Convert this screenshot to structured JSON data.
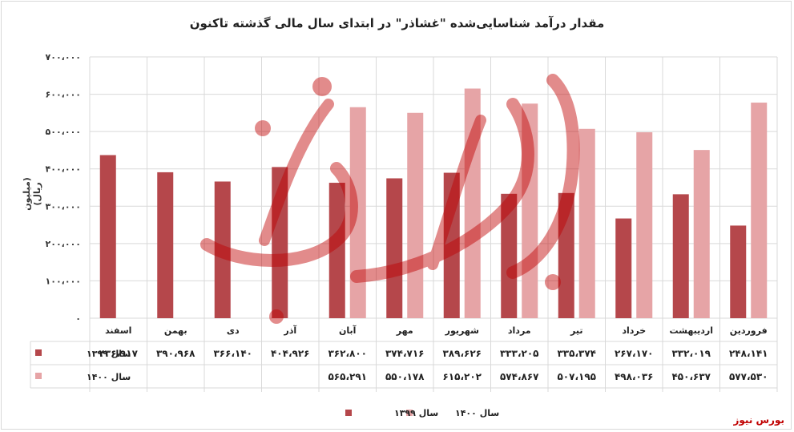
{
  "chart_data": {
    "type": "bar",
    "title": "مقدار درآمد شناسایی‌شده \"غشاذر\" در ابتدای سال مالی گذشته تاکنون",
    "ylabel": "(میلیون ریال)",
    "ylim": [
      0,
      700000
    ],
    "yticks": [
      "۰",
      "۱۰۰،۰۰۰",
      "۲۰۰،۰۰۰",
      "۳۰۰،۰۰۰",
      "۴۰۰،۰۰۰",
      "۵۰۰،۰۰۰",
      "۶۰۰،۰۰۰",
      "۷۰۰،۰۰۰"
    ],
    "grid": true,
    "legend_position": "bottom",
    "categories": [
      "فروردین",
      "اردیبهشت",
      "خرداد",
      "تیر",
      "مرداد",
      "شهریور",
      "مهر",
      "آبان",
      "آذر",
      "دی",
      "بهمن",
      "اسفند"
    ],
    "series": [
      {
        "name": "سال ۱۳۹۹",
        "color": "#b5474b",
        "values": [
          248141,
          332019,
          267170,
          335374,
          333205,
          389626,
          374716,
          362800,
          404926,
          366140,
          390968,
          436917
        ],
        "labels": [
          "۲۴۸،۱۴۱",
          "۳۳۲،۰۱۹",
          "۲۶۷،۱۷۰",
          "۳۳۵،۳۷۴",
          "۳۳۳،۲۰۵",
          "۳۸۹،۶۲۶",
          "۳۷۴،۷۱۶",
          "۳۶۲،۸۰۰",
          "۴۰۴،۹۲۶",
          "۳۶۶،۱۴۰",
          "۳۹۰،۹۶۸",
          "۴۳۶،۹۱۷"
        ]
      },
      {
        "name": "سال ۱۴۰۰",
        "color": "#e6a4a6",
        "values": [
          577530,
          450637,
          498036,
          507195,
          574867,
          615202,
          550178,
          565291,
          null,
          null,
          null,
          null
        ],
        "labels": [
          "۵۷۷،۵۳۰",
          "۴۵۰،۶۳۷",
          "۴۹۸،۰۳۶",
          "۵۰۷،۱۹۵",
          "۵۷۴،۸۶۷",
          "۶۱۵،۲۰۲",
          "۵۵۰،۱۷۸",
          "۵۶۵،۲۹۱",
          "",
          "",
          "",
          ""
        ]
      }
    ]
  },
  "brand": "بورس نیوز",
  "colors": {
    "grid": "#d9d9d9",
    "text": "#222222",
    "brand": "#c00000",
    "watermark": "#c00000"
  }
}
